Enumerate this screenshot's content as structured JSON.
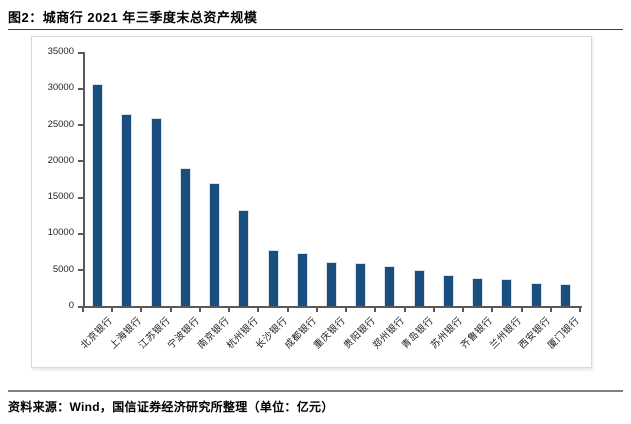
{
  "page": {
    "title": "图2：城商行 2021 年三季度末总资产规模",
    "source_note": "资料来源：Wind，国信证券经济研究所整理（单位：亿元）"
  },
  "chart_data": {
    "type": "bar",
    "title": "城商行 2021 年三季度末总资产规模",
    "unit": "亿元",
    "categories": [
      "北京银行",
      "上海银行",
      "江苏银行",
      "宁波银行",
      "南京银行",
      "杭州银行",
      "长沙银行",
      "成都银行",
      "重庆银行",
      "贵阳银行",
      "郑州银行",
      "青岛银行",
      "苏州银行",
      "齐鲁银行",
      "兰州银行",
      "西安银行",
      "厦门银行"
    ],
    "values": [
      30600,
      26500,
      25900,
      19050,
      17000,
      13200,
      7700,
      7250,
      6000,
      5900,
      5450,
      4900,
      4300,
      3900,
      3780,
      3200,
      3050
    ],
    "xlabel": "",
    "ylabel": "",
    "ylim": [
      0,
      35000
    ],
    "yticks": [
      0,
      5000,
      10000,
      15000,
      20000,
      25000,
      30000,
      35000
    ],
    "grid": false,
    "legend": false,
    "x_label_rotation_deg": 45,
    "colors": {
      "bar_fill": "#1a4e7e",
      "bar_edge": "#d9e2ea",
      "axis": "#595959",
      "tick_label": "#262626"
    }
  }
}
